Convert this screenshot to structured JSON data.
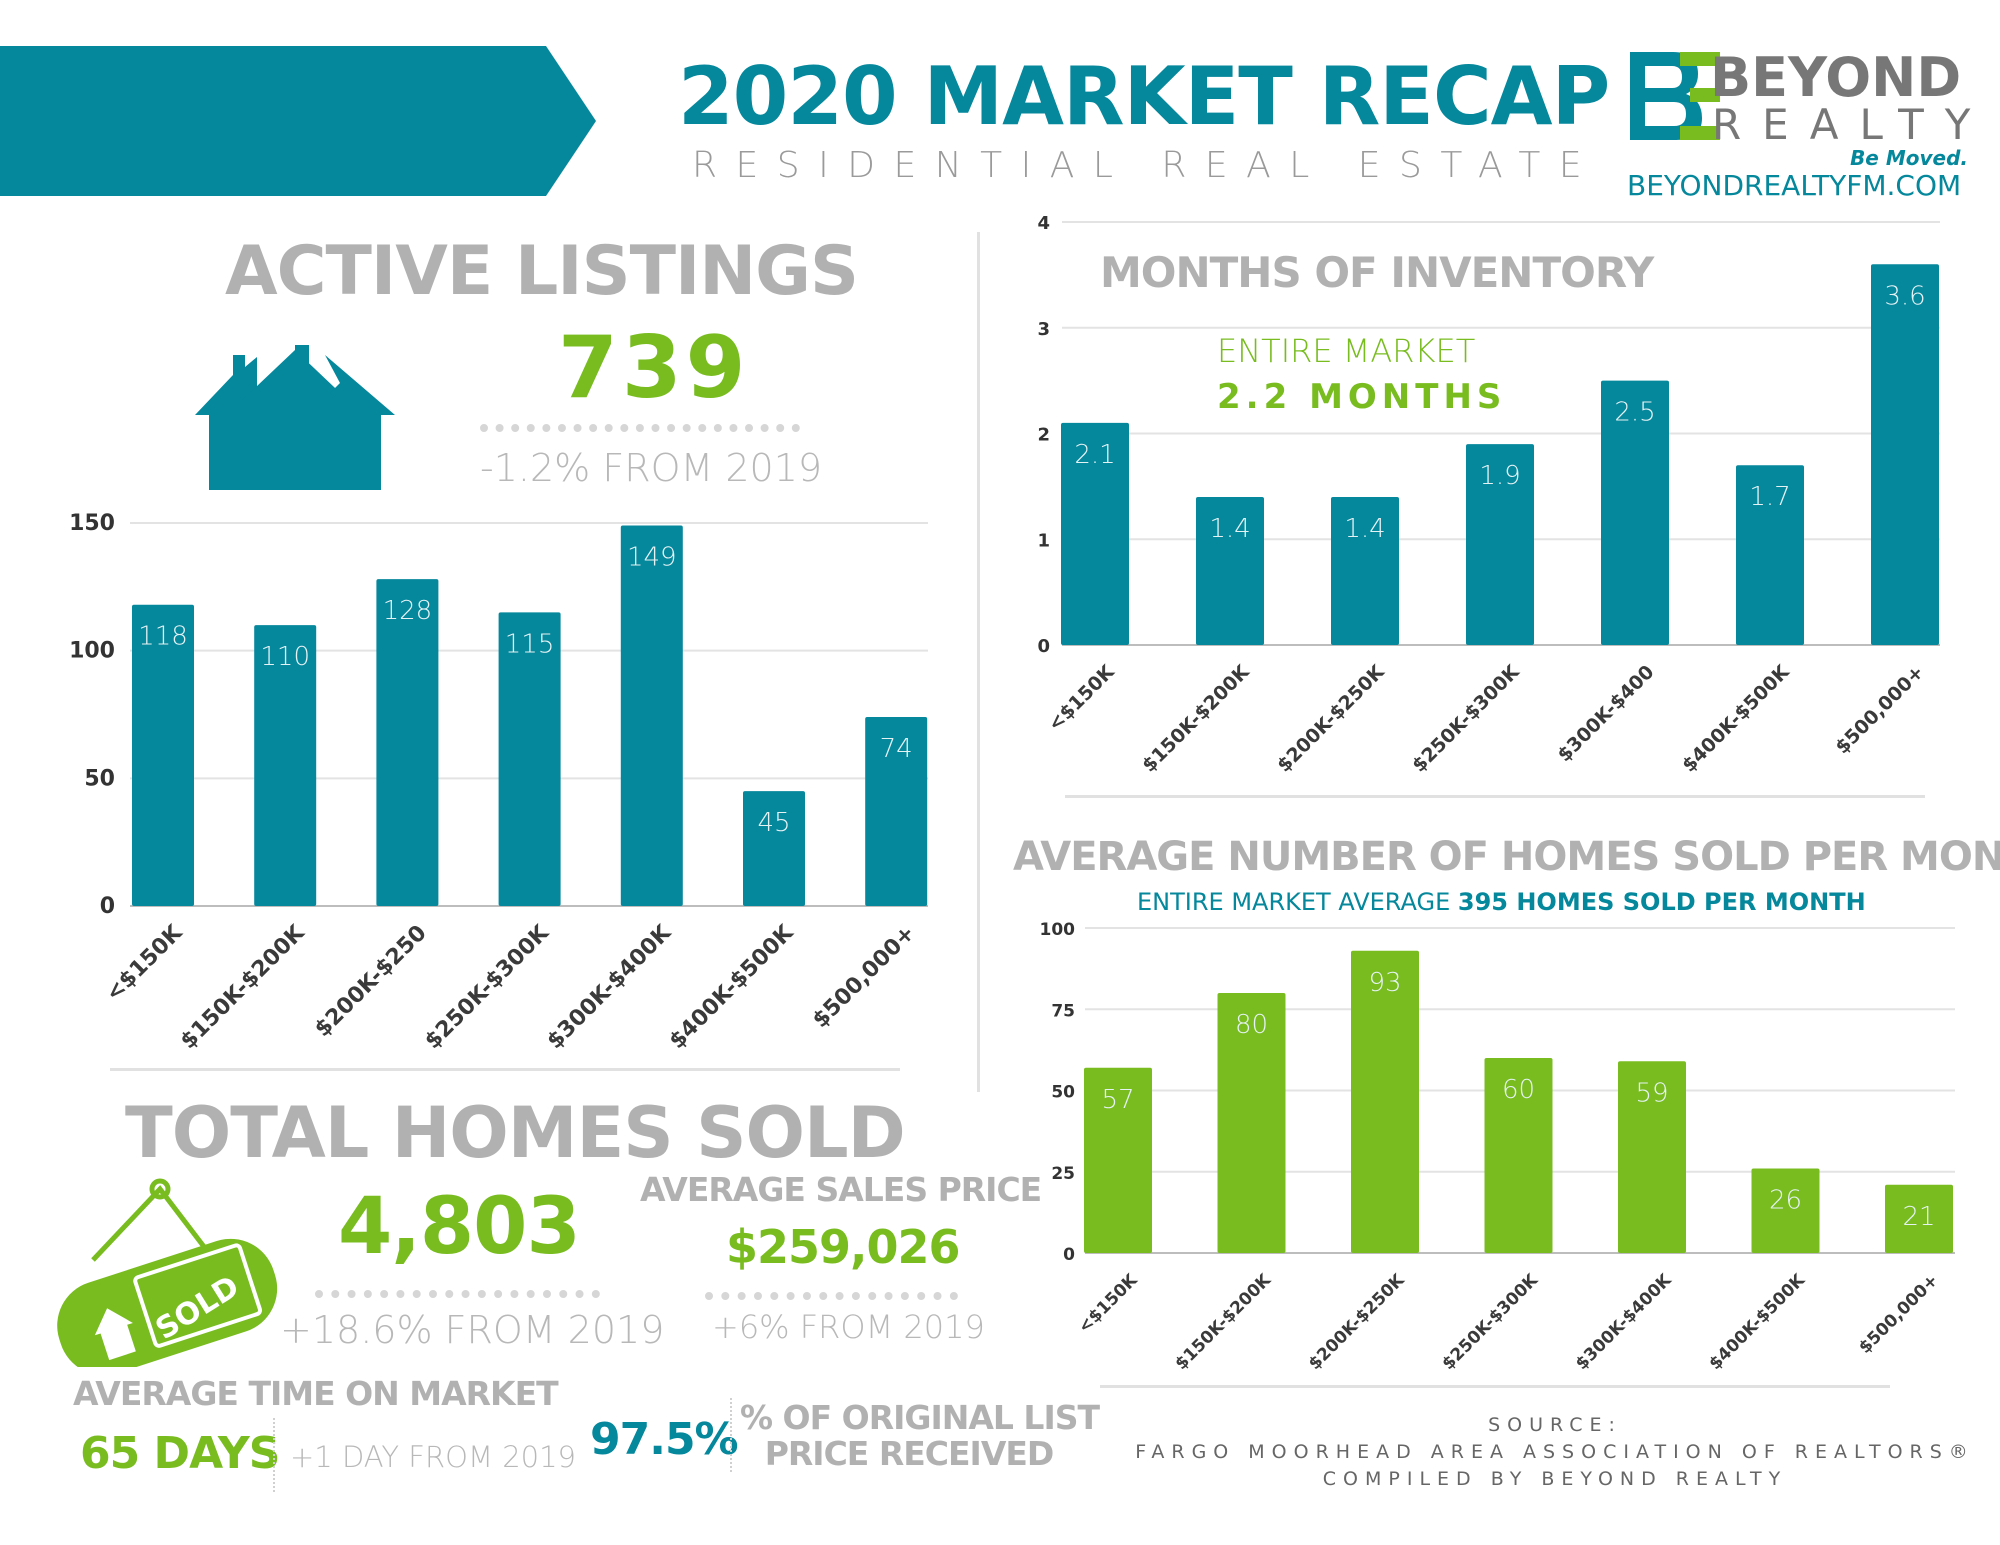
{
  "header": {
    "title": "2020 MARKET RECAP",
    "subtitle": "RESIDENTIAL REAL ESTATE",
    "logo": {
      "word1": "BEYOND",
      "word2": "REALTY",
      "tagline": "Be Moved.",
      "website": "BEYONDREALTYFM.COM"
    }
  },
  "colors": {
    "teal": "#05879c",
    "green": "#78bc20",
    "grey": "#b1b1b1"
  },
  "active_listings": {
    "heading": "ACTIVE LISTINGS",
    "value": "739",
    "change": "-1.2% FROM 2019",
    "icon": "houses-icon"
  },
  "months_inventory": {
    "heading": "MONTHS OF INVENTORY",
    "market_label": "ENTIRE MARKET",
    "market_value": "2.2 MONTHS"
  },
  "homes_sold_per_month": {
    "heading": "AVERAGE NUMBER OF HOMES SOLD PER MONTH",
    "subtitle_prefix": "ENTIRE MARKET AVERAGE",
    "subtitle_bold": "395 HOMES SOLD PER MONTH"
  },
  "total_homes_sold": {
    "heading": "TOTAL HOMES SOLD",
    "value": "4,803",
    "change": "+18.6% FROM 2019",
    "icon": "sold-sign-icon"
  },
  "avg_sales_price": {
    "heading": "AVERAGE SALES PRICE",
    "value": "$259,026",
    "change": "+6% FROM 2019"
  },
  "avg_time_on_market": {
    "heading": "AVERAGE TIME ON MARKET",
    "value": "65 DAYS",
    "change": "+1 DAY FROM 2019"
  },
  "list_price_received": {
    "value": "97.5%",
    "label_line1": "% OF ORIGINAL LIST",
    "label_line2": "PRICE RECEIVED"
  },
  "source": {
    "line1": "SOURCE:",
    "line2": "FARGO MOORHEAD AREA ASSOCIATION OF REALTORS®",
    "line3": "COMPILED BY BEYOND REALTY"
  },
  "chart_data": [
    {
      "type": "bar",
      "title": "ACTIVE LISTINGS",
      "categories": [
        "<$150K",
        "$150K-$200K",
        "$200K-$250",
        "$250K-$300K",
        "$300K-$400K",
        "$400K-$500K",
        "$500,000+"
      ],
      "values": [
        118,
        110,
        128,
        115,
        149,
        45,
        74
      ],
      "yticks": [
        0,
        50,
        100,
        150
      ],
      "ylim": [
        0,
        150
      ],
      "grid": true,
      "color": "#05879c"
    },
    {
      "type": "bar",
      "title": "MONTHS OF INVENTORY",
      "categories": [
        "<$150K",
        "$150K-$200K",
        "$200K-$250K",
        "$250K-$300K",
        "$300K-$400",
        "$400K-$500K",
        "$500,000+"
      ],
      "values": [
        2.1,
        1.4,
        1.4,
        1.9,
        2.5,
        1.7,
        3.6
      ],
      "yticks": [
        0,
        1,
        2,
        3,
        4
      ],
      "ylim": [
        0,
        4
      ],
      "grid": true,
      "color": "#05879c"
    },
    {
      "type": "bar",
      "title": "AVERAGE NUMBER OF HOMES SOLD PER MONTH",
      "categories": [
        "<$150K",
        "$150K-$200K",
        "$200K-$250K",
        "$250K-$300K",
        "$300K-$400K",
        "$400K-$500K",
        "$500,000+"
      ],
      "values": [
        57,
        80,
        93,
        60,
        59,
        26,
        21
      ],
      "yticks": [
        0,
        25,
        50,
        75,
        100
      ],
      "ylim": [
        0,
        100
      ],
      "grid": true,
      "color": "#78bc20"
    }
  ]
}
